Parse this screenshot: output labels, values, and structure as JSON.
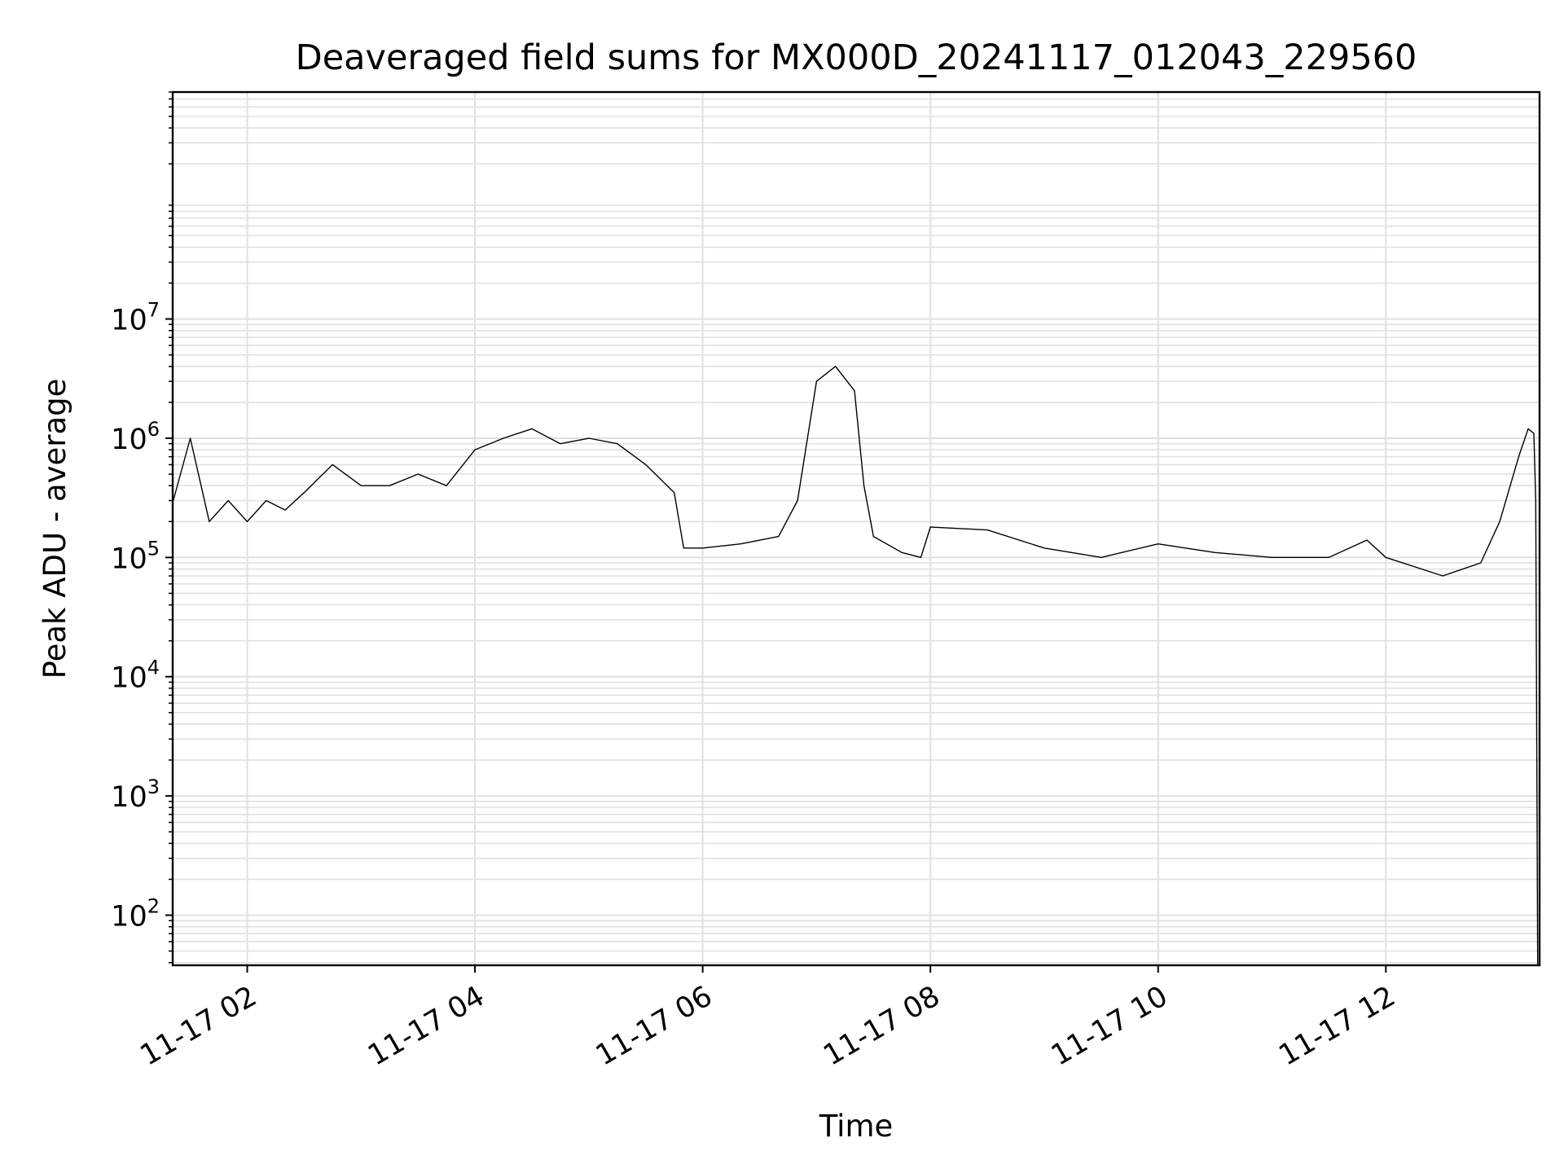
{
  "chart_data": {
    "type": "line",
    "title": "Deaveraged field sums for MX000D_20241117_012043_229560",
    "xlabel": "Time",
    "ylabel": "Peak ADU - average",
    "yscale": "log",
    "grid": true,
    "legend": "none",
    "line_color": "#000000",
    "grid_color": "#e0e0e0",
    "xlim": [
      "2024-11-17T01:20:43",
      "2024-11-17T13:21:00"
    ],
    "ylim": [
      38,
      800000000
    ],
    "x_ticks": [
      {
        "value": "2024-11-17T02:00",
        "label": "11-17 02"
      },
      {
        "value": "2024-11-17T04:00",
        "label": "11-17 04"
      },
      {
        "value": "2024-11-17T06:00",
        "label": "11-17 06"
      },
      {
        "value": "2024-11-17T08:00",
        "label": "11-17 08"
      },
      {
        "value": "2024-11-17T10:00",
        "label": "11-17 10"
      },
      {
        "value": "2024-11-17T12:00",
        "label": "11-17 12"
      }
    ],
    "y_ticks": [
      {
        "value": 100,
        "base": "10",
        "exp": "2"
      },
      {
        "value": 1000,
        "base": "10",
        "exp": "3"
      },
      {
        "value": 10000,
        "base": "10",
        "exp": "4"
      },
      {
        "value": 100000,
        "base": "10",
        "exp": "5"
      },
      {
        "value": 1000000,
        "base": "10",
        "exp": "6"
      },
      {
        "value": 10000000,
        "base": "10",
        "exp": "7"
      }
    ],
    "series": [
      {
        "values": [
          [
            "2024-11-17T01:21",
            300000
          ],
          [
            "2024-11-17T01:30",
            1000000
          ],
          [
            "2024-11-17T01:40",
            200000
          ],
          [
            "2024-11-17T01:50",
            300000
          ],
          [
            "2024-11-17T02:00",
            200000
          ],
          [
            "2024-11-17T02:10",
            300000
          ],
          [
            "2024-11-17T02:20",
            250000
          ],
          [
            "2024-11-17T02:30",
            350000
          ],
          [
            "2024-11-17T02:45",
            600000
          ],
          [
            "2024-11-17T03:00",
            400000
          ],
          [
            "2024-11-17T03:15",
            400000
          ],
          [
            "2024-11-17T03:30",
            500000
          ],
          [
            "2024-11-17T03:45",
            400000
          ],
          [
            "2024-11-17T04:00",
            800000
          ],
          [
            "2024-11-17T04:15",
            1000000
          ],
          [
            "2024-11-17T04:30",
            1200000
          ],
          [
            "2024-11-17T04:45",
            900000
          ],
          [
            "2024-11-17T05:00",
            1000000
          ],
          [
            "2024-11-17T05:15",
            900000
          ],
          [
            "2024-11-17T05:30",
            600000
          ],
          [
            "2024-11-17T05:45",
            350000
          ],
          [
            "2024-11-17T05:50",
            120000
          ],
          [
            "2024-11-17T06:00",
            120000
          ],
          [
            "2024-11-17T06:20",
            130000
          ],
          [
            "2024-11-17T06:40",
            150000
          ],
          [
            "2024-11-17T06:50",
            300000
          ],
          [
            "2024-11-17T07:00",
            3000000
          ],
          [
            "2024-11-17T07:10",
            4000000
          ],
          [
            "2024-11-17T07:20",
            2500000
          ],
          [
            "2024-11-17T07:25",
            400000
          ],
          [
            "2024-11-17T07:30",
            150000
          ],
          [
            "2024-11-17T07:45",
            110000
          ],
          [
            "2024-11-17T07:55",
            100000
          ],
          [
            "2024-11-17T08:00",
            180000
          ],
          [
            "2024-11-17T08:30",
            170000
          ],
          [
            "2024-11-17T09:00",
            120000
          ],
          [
            "2024-11-17T09:30",
            100000
          ],
          [
            "2024-11-17T10:00",
            130000
          ],
          [
            "2024-11-17T10:30",
            110000
          ],
          [
            "2024-11-17T11:00",
            100000
          ],
          [
            "2024-11-17T11:30",
            100000
          ],
          [
            "2024-11-17T11:50",
            140000
          ],
          [
            "2024-11-17T12:00",
            100000
          ],
          [
            "2024-11-17T12:30",
            70000
          ],
          [
            "2024-11-17T12:50",
            90000
          ],
          [
            "2024-11-17T13:00",
            200000
          ],
          [
            "2024-11-17T13:10",
            700000
          ],
          [
            "2024-11-17T13:15",
            1200000
          ],
          [
            "2024-11-17T13:18",
            1100000
          ],
          [
            "2024-11-17T13:19",
            300000
          ],
          [
            "2024-11-17T13:20",
            38
          ]
        ]
      }
    ]
  }
}
